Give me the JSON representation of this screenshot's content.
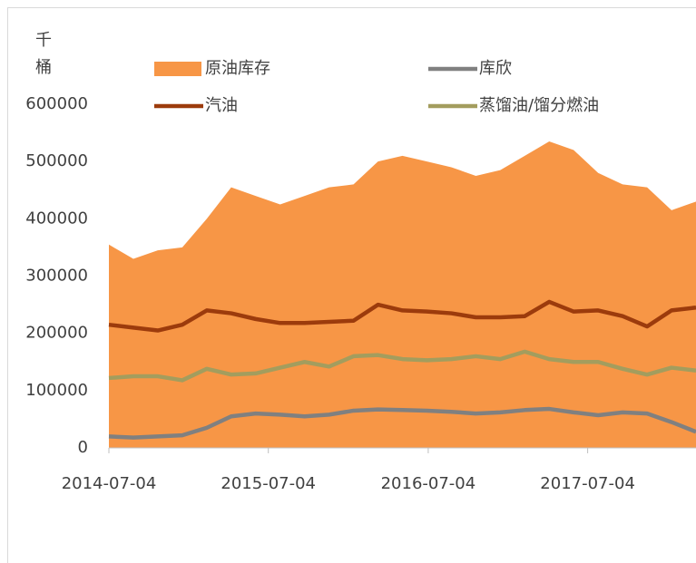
{
  "chart_data": {
    "type": "area",
    "y_label": "千桶",
    "x": [
      "2014-07-04",
      "2014-08-29",
      "2014-10-24",
      "2014-12-19",
      "2015-02-13",
      "2015-04-10",
      "2015-06-05",
      "2015-07-31",
      "2015-09-25",
      "2015-11-20",
      "2016-01-15",
      "2016-03-11",
      "2016-05-06",
      "2016-07-01",
      "2016-08-26",
      "2016-10-21",
      "2016-12-16",
      "2017-02-10",
      "2017-04-07",
      "2017-06-02",
      "2017-07-28",
      "2017-09-22",
      "2017-11-17",
      "2018-01-12",
      "2018-03-09"
    ],
    "series": [
      {
        "name": "原油库存",
        "kind": "area",
        "color": "#f79646",
        "values": [
          355000,
          330000,
          345000,
          350000,
          400000,
          455000,
          440000,
          425000,
          440000,
          455000,
          460000,
          500000,
          510000,
          500000,
          490000,
          475000,
          485000,
          510000,
          535000,
          520000,
          480000,
          460000,
          455000,
          415000,
          430000
        ]
      },
      {
        "name": "库欣",
        "kind": "line",
        "color": "#808080",
        "values": [
          20000,
          18000,
          20000,
          22000,
          35000,
          55000,
          60000,
          58000,
          55000,
          58000,
          65000,
          67000,
          66000,
          65000,
          63000,
          60000,
          62000,
          66000,
          68000,
          62000,
          57000,
          62000,
          60000,
          45000,
          28000
        ]
      },
      {
        "name": "汽油",
        "kind": "line",
        "color": "#9c3b0c",
        "values": [
          215000,
          210000,
          205000,
          215000,
          240000,
          235000,
          225000,
          218000,
          218000,
          220000,
          222000,
          250000,
          240000,
          238000,
          235000,
          228000,
          228000,
          230000,
          255000,
          238000,
          240000,
          230000,
          212000,
          240000,
          245000
        ]
      },
      {
        "name": "蒸馏油/馏分燃油",
        "kind": "line",
        "color": "#a39d5e",
        "values": [
          122000,
          125000,
          125000,
          118000,
          138000,
          128000,
          130000,
          140000,
          150000,
          142000,
          160000,
          162000,
          155000,
          153000,
          155000,
          160000,
          155000,
          168000,
          155000,
          150000,
          150000,
          138000,
          128000,
          140000,
          135000
        ]
      }
    ],
    "xlim": [
      "2014-07-04",
      "2018-03-09"
    ],
    "xticks": [
      "2014-07-04",
      "2015-07-04",
      "2016-07-04",
      "2017-07-04"
    ],
    "ylim": [
      0,
      600000
    ],
    "yticks": [
      0,
      100000,
      200000,
      300000,
      400000,
      500000,
      600000
    ],
    "grid": false,
    "legend": "top"
  }
}
